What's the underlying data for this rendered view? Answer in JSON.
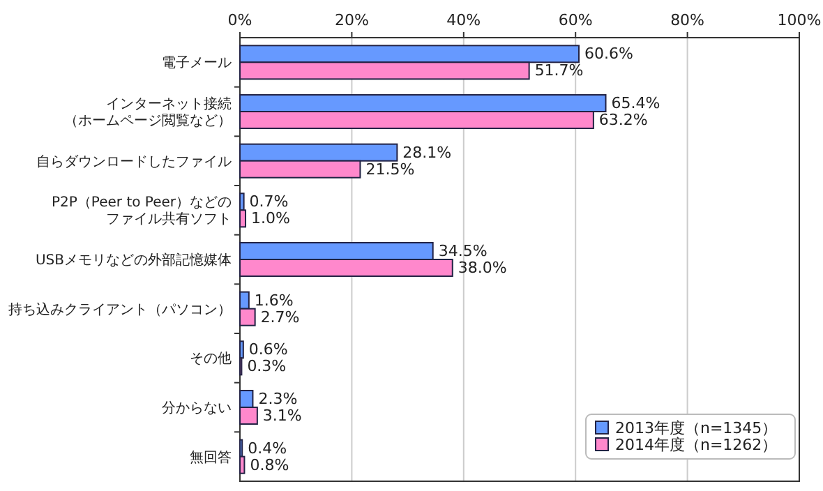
{
  "chart_data": {
    "type": "bar",
    "orientation": "horizontal",
    "categories": [
      "電子メール",
      "インターネット接続（ホームページ閲覧など）",
      "自らダウンロードしたファイル",
      "P2P（Peer to Peer）などのファイル共有ソフト",
      "USBメモリなどの外部記憶媒体",
      "持ち込みクライアント（パソコン）",
      "その他",
      "分からない",
      "無回答"
    ],
    "series": [
      {
        "name": "2013年度（n=1345）",
        "color": "#6699ff",
        "values": [
          60.6,
          65.4,
          28.1,
          0.7,
          34.5,
          1.6,
          0.6,
          2.3,
          0.4
        ],
        "value_labels": [
          "60.6%",
          "65.4%",
          "28.1%",
          "0.7%",
          "34.5%",
          "1.6%",
          "0.6%",
          "2.3%",
          "0.4%"
        ]
      },
      {
        "name": "2014年度（n=1262）",
        "color": "#ff88cc",
        "values": [
          51.7,
          63.2,
          21.5,
          1.0,
          38.0,
          2.7,
          0.3,
          3.1,
          0.8
        ],
        "value_labels": [
          "51.7%",
          "63.2%",
          "21.5%",
          "1.0%",
          "38.0%",
          "2.7%",
          "0.3%",
          "3.1%",
          "0.8%"
        ]
      }
    ],
    "xlim": [
      0,
      100
    ],
    "xticks": [
      {
        "value": 0,
        "label": "0%"
      },
      {
        "value": 20,
        "label": "20%"
      },
      {
        "value": 40,
        "label": "40%"
      },
      {
        "value": 60,
        "label": "60%"
      },
      {
        "value": 80,
        "label": "80%"
      },
      {
        "value": 100,
        "label": "100%"
      }
    ],
    "grid": "x",
    "legend": "bottom right"
  }
}
